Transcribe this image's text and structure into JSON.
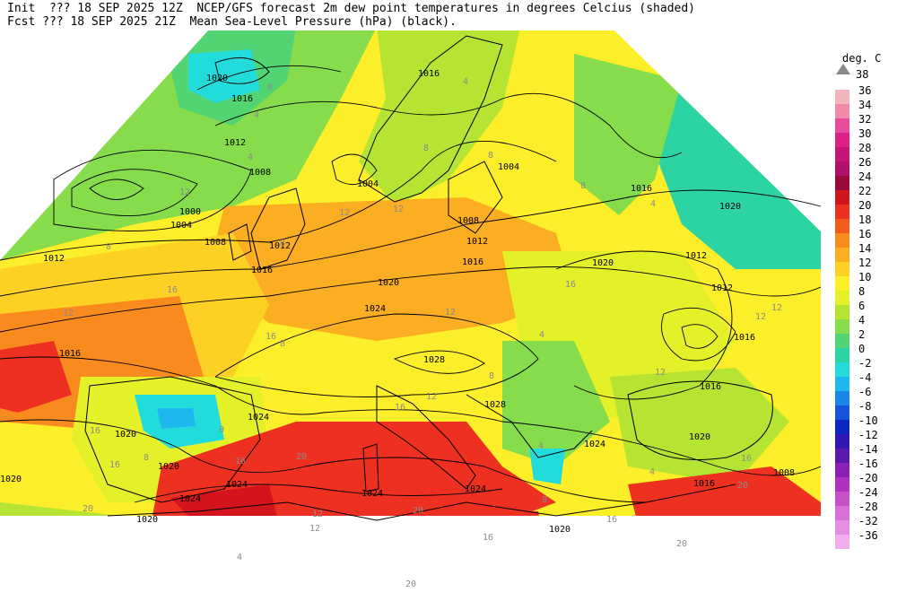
{
  "header": {
    "line1": "Init  ??? 18 SEP 2025 12Z  NCEP/GFS forecast 2m dew point temperatures in degrees Celcius (shaded)",
    "line2": "Fcst ??? 18 SEP 2025 21Z  Mean Sea-Level Pressure (hPa) (black)."
  },
  "legend": {
    "title": "deg. C",
    "top_label": "38",
    "entries": [
      {
        "label": "36",
        "color": "#f4b4bc"
      },
      {
        "label": "34",
        "color": "#f08aa8"
      },
      {
        "label": "32",
        "color": "#e84c9a"
      },
      {
        "label": "30",
        "color": "#e0208a"
      },
      {
        "label": "28",
        "color": "#c81478"
      },
      {
        "label": "26",
        "color": "#b0106a"
      },
      {
        "label": "24",
        "color": "#9c0a3c"
      },
      {
        "label": "22",
        "color": "#d4141c"
      },
      {
        "label": "20",
        "color": "#ee3020"
      },
      {
        "label": "18",
        "color": "#f45a1c"
      },
      {
        "label": "16",
        "color": "#f88a1e"
      },
      {
        "label": "14",
        "color": "#fbae22"
      },
      {
        "label": "12",
        "color": "#fdd024"
      },
      {
        "label": "10",
        "color": "#fcee28"
      },
      {
        "label": "8",
        "color": "#e4f028"
      },
      {
        "label": "6",
        "color": "#b6e432"
      },
      {
        "label": "4",
        "color": "#86dc4a"
      },
      {
        "label": "2",
        "color": "#52d472"
      },
      {
        "label": "0",
        "color": "#2cd4a4"
      },
      {
        "label": "-2",
        "color": "#22dcdc"
      },
      {
        "label": "-4",
        "color": "#1cb8ee"
      },
      {
        "label": "-6",
        "color": "#1a86e8"
      },
      {
        "label": "-8",
        "color": "#1454dc"
      },
      {
        "label": "-10",
        "color": "#0e26c4"
      },
      {
        "label": "-12",
        "color": "#3018b4"
      },
      {
        "label": "-14",
        "color": "#5a1ab0"
      },
      {
        "label": "-16",
        "color": "#8a20b6"
      },
      {
        "label": "-20",
        "color": "#b030c0"
      },
      {
        "label": "-24",
        "color": "#c850c8"
      },
      {
        "label": "-28",
        "color": "#d870d8"
      },
      {
        "label": "-32",
        "color": "#e48ee2"
      },
      {
        "label": "-36",
        "color": "#f0aef0"
      }
    ]
  },
  "map": {
    "isobar_labels": [
      {
        "text": "1020"
      },
      {
        "text": "1016"
      },
      {
        "text": "1012"
      },
      {
        "text": "1008"
      },
      {
        "text": "1000"
      },
      {
        "text": "1004"
      },
      {
        "text": "1008"
      },
      {
        "text": "1012"
      },
      {
        "text": "1016"
      },
      {
        "text": "1012"
      },
      {
        "text": "1016"
      },
      {
        "text": "1020"
      },
      {
        "text": "1024"
      },
      {
        "text": "1008"
      },
      {
        "text": "1012"
      },
      {
        "text": "1016"
      },
      {
        "text": "1004"
      },
      {
        "text": "1020"
      },
      {
        "text": "1016"
      },
      {
        "text": "1020"
      },
      {
        "text": "1012"
      },
      {
        "text": "1012"
      },
      {
        "text": "1028"
      },
      {
        "text": "1028"
      },
      {
        "text": "1016"
      },
      {
        "text": "1020"
      },
      {
        "text": "1024"
      },
      {
        "text": "1020"
      },
      {
        "text": "1024"
      },
      {
        "text": "1020"
      },
      {
        "text": "1024"
      },
      {
        "text": "1024"
      },
      {
        "text": "1024"
      },
      {
        "text": "1020"
      },
      {
        "text": "1016"
      },
      {
        "text": "1008"
      },
      {
        "text": "1016"
      },
      {
        "text": "1024"
      },
      {
        "text": "1020"
      },
      {
        "text": "1020"
      },
      {
        "text": "1016"
      },
      {
        "text": "1004"
      }
    ],
    "dewpoint_labels": [
      {
        "text": "0"
      },
      {
        "text": "4"
      },
      {
        "text": "12"
      },
      {
        "text": "8"
      },
      {
        "text": "16"
      },
      {
        "text": "12"
      },
      {
        "text": "4"
      },
      {
        "text": "12"
      },
      {
        "text": "8"
      },
      {
        "text": "4"
      },
      {
        "text": "8"
      },
      {
        "text": "12"
      },
      {
        "text": "12"
      },
      {
        "text": "8"
      },
      {
        "text": "16"
      },
      {
        "text": "4"
      },
      {
        "text": "12"
      },
      {
        "text": "16"
      },
      {
        "text": "8"
      },
      {
        "text": "12"
      },
      {
        "text": "20"
      },
      {
        "text": "16"
      },
      {
        "text": "20"
      },
      {
        "text": "16"
      },
      {
        "text": "12"
      },
      {
        "text": "20"
      },
      {
        "text": "16"
      },
      {
        "text": "16"
      },
      {
        "text": "8"
      },
      {
        "text": "0"
      },
      {
        "text": "4"
      },
      {
        "text": "20"
      },
      {
        "text": "12"
      },
      {
        "text": "4"
      },
      {
        "text": "20"
      },
      {
        "text": "12"
      },
      {
        "text": "16"
      },
      {
        "text": "8"
      },
      {
        "text": "4"
      },
      {
        "text": "16"
      },
      {
        "text": "20"
      },
      {
        "text": "4"
      },
      {
        "text": "8"
      },
      {
        "text": "16"
      },
      {
        "text": "12"
      },
      {
        "text": "8"
      }
    ]
  }
}
